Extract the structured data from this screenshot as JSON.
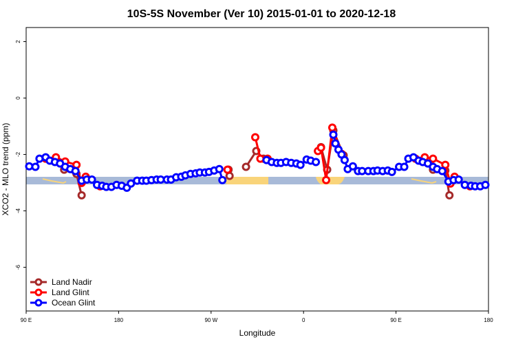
{
  "chart_data": {
    "type": "line",
    "title": "10S-5S November (Ver 10)   2015-01-01 to 2020-12-18",
    "x_label": "Longitude",
    "y_label": "XCO2 - MLO trend (ppm)",
    "xlim": [
      90,
      540
    ],
    "ylim": [
      -7.55,
      2.5
    ],
    "xticks": [
      {
        "value": 90,
        "label": "90 E"
      },
      180,
      {
        "value": 270,
        "label": "90 W"
      },
      {
        "value": 360,
        "label": "0"
      },
      {
        "value": 450,
        "label": "90 E"
      },
      {
        "value": 540,
        "label": "180"
      }
    ],
    "yticks": [
      -6,
      -4,
      -2,
      0,
      2
    ],
    "legend": "bottom-left",
    "series": [
      {
        "name": "Land Nadir",
        "color": "#a52a2a",
        "x": [
          127,
          139,
          144,
          287,
          288,
          304,
          314,
          321,
          377,
          383,
          389,
          399,
          486,
          498,
          502
        ],
        "values": [
          -2.54,
          -2.69,
          -3.45,
          -2.54,
          -2.76,
          -2.44,
          -1.88,
          -2.15,
          -1.74,
          -2.54,
          -1.15,
          -2.03,
          -2.54,
          -2.57,
          -3.45
        ]
      },
      {
        "name": "Land Glint",
        "color": "#ff0000",
        "x": [
          109,
          119,
          128,
          139,
          144,
          148,
          162,
          286,
          313,
          318,
          325,
          374,
          377,
          382,
          388,
          397,
          469,
          478,
          486,
          498,
          503,
          507,
          522
        ],
        "values": [
          -2.15,
          -2.1,
          -2.25,
          -2.37,
          -3.01,
          -2.79,
          -3.13,
          -2.54,
          -1.39,
          -2.15,
          -2.15,
          -1.88,
          -1.76,
          -2.91,
          -1.05,
          -1.98,
          -2.15,
          -2.1,
          -2.15,
          -2.37,
          -3.03,
          -2.79,
          -3.13
        ]
      },
      {
        "name": "Ocean Glint",
        "color": "#0000ff",
        "x": [
          93,
          99,
          103,
          109,
          113,
          118,
          123,
          128,
          133,
          138,
          144,
          149,
          154,
          159,
          164,
          168,
          173,
          178,
          183,
          188,
          192,
          198,
          203,
          207,
          212,
          217,
          221,
          227,
          231,
          236,
          241,
          245,
          250,
          255,
          259,
          264,
          268,
          273,
          278,
          281,
          324,
          329,
          334,
          338,
          343,
          348,
          353,
          357,
          363,
          367,
          372,
          389,
          391,
          394,
          397,
          400,
          403,
          408,
          413,
          417,
          423,
          428,
          432,
          437,
          442,
          446,
          453,
          458,
          462,
          467,
          472,
          476,
          481,
          486,
          490,
          495,
          501,
          506,
          511,
          517,
          523,
          527,
          532,
          537
        ],
        "values": [
          -2.42,
          -2.44,
          -2.15,
          -2.1,
          -2.22,
          -2.27,
          -2.32,
          -2.44,
          -2.52,
          -2.59,
          -2.93,
          -2.89,
          -2.89,
          -3.08,
          -3.11,
          -3.15,
          -3.15,
          -3.08,
          -3.11,
          -3.18,
          -3.03,
          -2.93,
          -2.93,
          -2.93,
          -2.91,
          -2.89,
          -2.89,
          -2.89,
          -2.89,
          -2.81,
          -2.79,
          -2.74,
          -2.69,
          -2.67,
          -2.64,
          -2.64,
          -2.62,
          -2.57,
          -2.52,
          -2.91,
          -2.2,
          -2.27,
          -2.3,
          -2.3,
          -2.27,
          -2.3,
          -2.32,
          -2.37,
          -2.18,
          -2.22,
          -2.27,
          -1.3,
          -1.61,
          -1.83,
          -2.0,
          -2.2,
          -2.52,
          -2.42,
          -2.59,
          -2.59,
          -2.59,
          -2.59,
          -2.57,
          -2.59,
          -2.57,
          -2.62,
          -2.44,
          -2.44,
          -2.15,
          -2.1,
          -2.22,
          -2.27,
          -2.32,
          -2.44,
          -2.52,
          -2.59,
          -2.96,
          -2.91,
          -2.89,
          -3.08,
          -3.11,
          -3.13,
          -3.13,
          -3.08
        ]
      }
    ]
  }
}
